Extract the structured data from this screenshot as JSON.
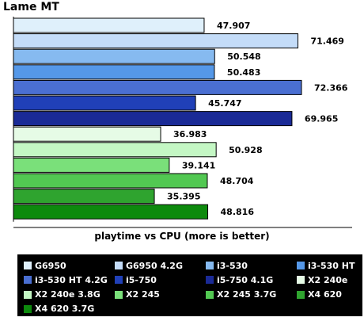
{
  "chart_data": {
    "type": "bar",
    "orientation": "horizontal",
    "title": "Lame MT",
    "xlabel": "playtime vs CPU (more is better)",
    "ylabel": "",
    "xlim": [
      0,
      90
    ],
    "grid": false,
    "legend_position": "bottom",
    "series": [
      {
        "name": "G6950",
        "value": 47.907,
        "label": "47.907",
        "color": "#dff0fb"
      },
      {
        "name": "G6950 4.2G",
        "value": 71.469,
        "label": "71.469",
        "color": "#c4dcf8"
      },
      {
        "name": "i3-530",
        "value": 50.548,
        "label": "50.548",
        "color": "#86baf0"
      },
      {
        "name": "i3-530 HT",
        "value": 50.483,
        "label": "50.483",
        "color": "#5598e8"
      },
      {
        "name": "i3-530 HT 4.2G",
        "value": 72.366,
        "label": "72.366",
        "color": "#4a6fd2"
      },
      {
        "name": "i5-750",
        "value": 45.747,
        "label": "45.747",
        "color": "#2040b8"
      },
      {
        "name": "i5-750 4.1G",
        "value": 69.965,
        "label": "69.965",
        "color": "#1a2a96"
      },
      {
        "name": "X2 240e",
        "value": 36.983,
        "label": "36.983",
        "color": "#e6fbe6"
      },
      {
        "name": "X2 240e 3.8G",
        "value": 50.928,
        "label": "50.928",
        "color": "#c4f7c4"
      },
      {
        "name": "X2 245",
        "value": 39.141,
        "label": "39.141",
        "color": "#7ae07a"
      },
      {
        "name": "X2 245 3.7G",
        "value": 48.704,
        "label": "48.704",
        "color": "#52c852"
      },
      {
        "name": "X4 620",
        "value": 35.395,
        "label": "35.395",
        "color": "#2fa42f"
      },
      {
        "name": "X4 620 3.7G",
        "value": 48.816,
        "label": "48.816",
        "color": "#0d8a0d"
      }
    ]
  }
}
